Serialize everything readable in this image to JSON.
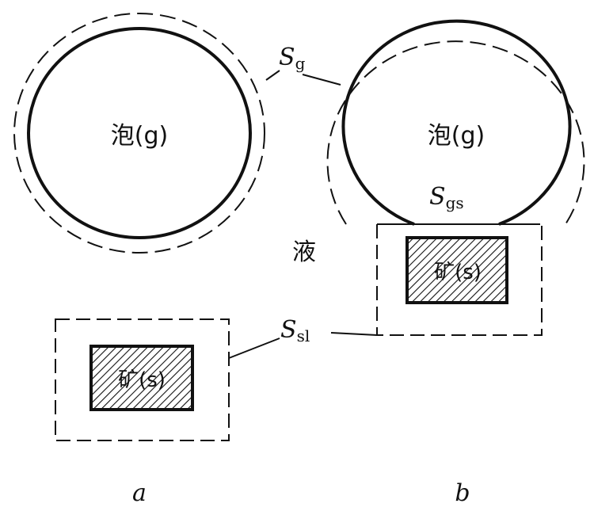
{
  "labels": {
    "bubble": "泡(g)",
    "liquid": "液",
    "mineral": "矿(s)",
    "S_g": {
      "base": "S",
      "sub": "g"
    },
    "S_gs": {
      "base": "S",
      "sub": "gs"
    },
    "S_sl": {
      "base": "S",
      "sub": "sl"
    },
    "panel_a": "a",
    "panel_b": "b"
  },
  "colors": {
    "line": "#111111",
    "mineral_fill": "#8c8c8c",
    "background": "#ffffff"
  }
}
